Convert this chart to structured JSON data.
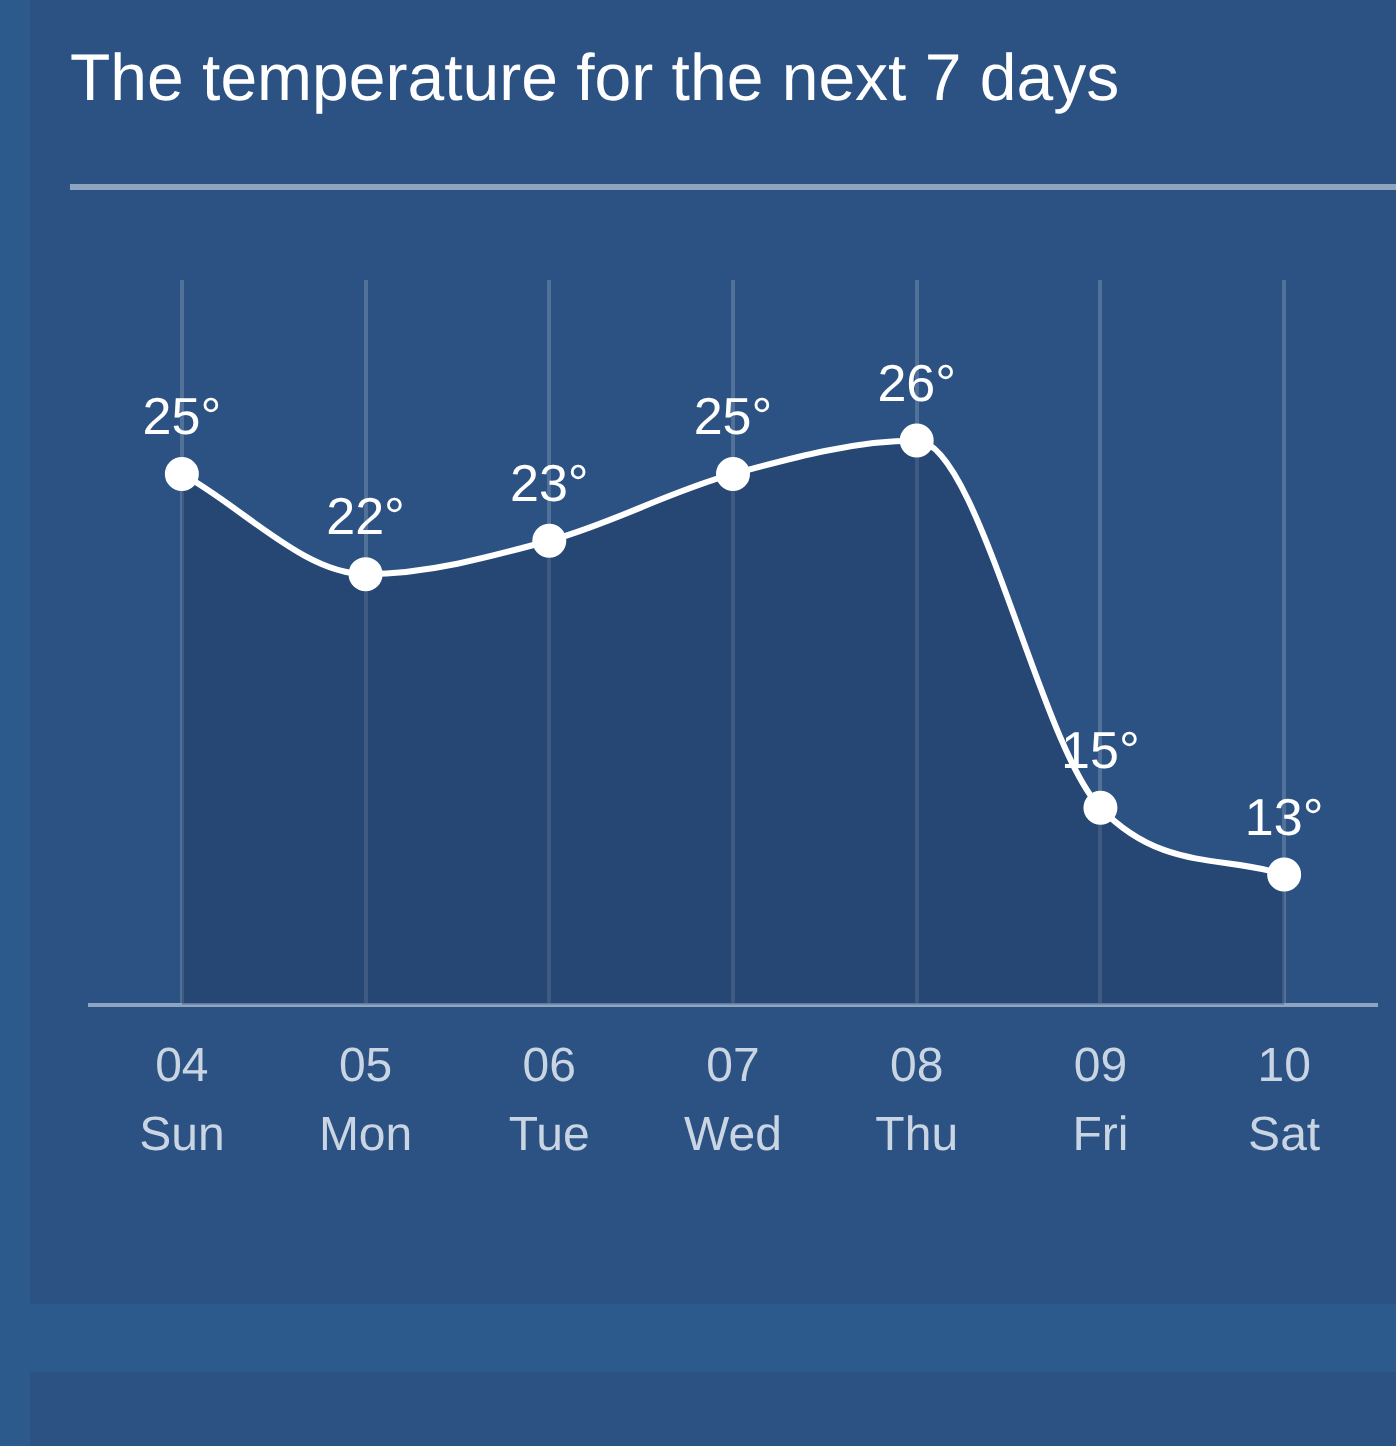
{
  "chart_data": {
    "type": "area",
    "title": "The temperature for the next 7 days",
    "categories": [
      "04\nSun",
      "05\nMon",
      "06\nTue",
      "07\nWed",
      "08\nThu",
      "09\nFri",
      "10\nSat"
    ],
    "series": [
      {
        "color": "#ffffff",
        "values": [
          25,
          22,
          23,
          25,
          26,
          15,
          13
        ],
        "value_labels": [
          "25°",
          "22°",
          "23°",
          "25°",
          "26°",
          "15°",
          "13°"
        ]
      }
    ],
    "grid": "x",
    "legend": false,
    "marker": "circle",
    "line_style": "solid"
  }
}
